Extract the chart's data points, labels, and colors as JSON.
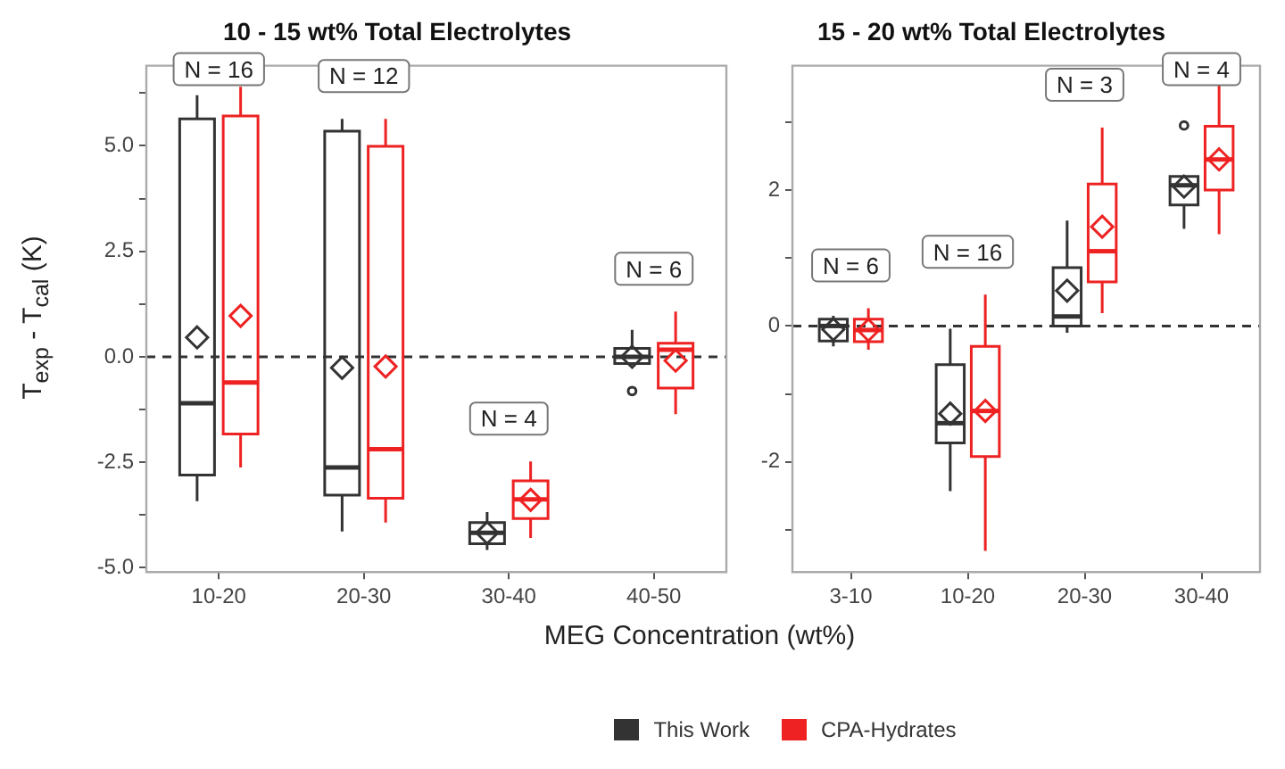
{
  "chart_data": [
    {
      "type": "box",
      "title": "10 - 15 wt% Total Electrolytes",
      "xlabel": "MEG Concentration (wt%)",
      "ylabel": "T$_{exp}$ - T$_{cal}$ (K)",
      "categories": [
        "10-20",
        "20-30",
        "30-40",
        "40-50"
      ],
      "series": [
        {
          "name": "This Work",
          "color": "#333333",
          "boxes": [
            {
              "low": -3.42,
              "q1": -2.8,
              "median": -1.1,
              "q3": 5.64,
              "high": 6.2,
              "mean": 0.46
            },
            {
              "low": -4.14,
              "q1": -3.28,
              "median": -2.62,
              "q3": 5.35,
              "high": 5.64,
              "mean": -0.26
            },
            {
              "low": -4.58,
              "q1": -4.43,
              "median": -4.17,
              "q3": -3.93,
              "high": -3.68,
              "mean": -4.17
            },
            {
              "low": -0.2,
              "q1": -0.16,
              "median": 0,
              "q3": 0.2,
              "high": 0.64,
              "mean": 0,
              "outliers": [
                -0.81
              ]
            }
          ]
        },
        {
          "name": "CPA-Hydrates",
          "color": "#ee2222",
          "boxes": [
            {
              "low": -2.62,
              "q1": -1.83,
              "median": -0.61,
              "q3": 5.71,
              "high": 6.4,
              "mean": 0.97
            },
            {
              "low": -3.93,
              "q1": -3.35,
              "median": -2.19,
              "q3": 4.99,
              "high": 5.64,
              "mean": -0.23
            },
            {
              "low": -4.29,
              "q1": -3.83,
              "median": -3.38,
              "q3": -2.94,
              "high": -2.48,
              "mean": -3.39
            },
            {
              "low": -1.36,
              "q1": -0.74,
              "median": 0.17,
              "q3": 0.32,
              "high": 1.07,
              "mean": -0.09
            }
          ]
        }
      ],
      "ylim": [
        -5.1,
        6.9
      ],
      "yticks": [
        {
          "value": -5,
          "label": "-5.0"
        },
        {
          "value": -3.75,
          "label": null
        },
        {
          "value": -2.5,
          "label": "-2.5"
        },
        {
          "value": -1.25,
          "label": null
        },
        {
          "value": 0,
          "label": "0.0"
        },
        {
          "value": 1.25,
          "label": null
        },
        {
          "value": 2.5,
          "label": "2.5"
        },
        {
          "value": 3.75,
          "label": null
        },
        {
          "value": 5,
          "label": "5.0"
        },
        {
          "value": 6.25,
          "label": null
        }
      ],
      "ref_lines": [
        {
          "axis": "y",
          "value": 0,
          "line_style": "dashed"
        }
      ],
      "annotations": [
        "N = 16",
        "N = 12",
        "N = 4",
        "N = 6"
      ],
      "legend": "bottom",
      "grid": false,
      "marker": "diamond"
    },
    {
      "type": "box",
      "title": "15 - 20 wt% Total Electrolytes",
      "categories": [
        "3-10",
        "10-20",
        "20-30",
        "30-40"
      ],
      "series": [
        {
          "color": "#333333",
          "boxes": [
            {
              "low": -0.3,
              "q1": -0.22,
              "median": 0,
              "q3": 0.1,
              "high": 0.15,
              "mean": -0.05
            },
            {
              "low": -2.43,
              "q1": -1.72,
              "median": -1.43,
              "q3": -0.57,
              "high": -0.04,
              "mean": -1.29
            },
            {
              "low": -0.1,
              "q1": 0,
              "median": 0.14,
              "q3": 0.86,
              "high": 1.55,
              "mean": 0.52
            },
            {
              "low": 1.43,
              "q1": 1.78,
              "median": 2.07,
              "q3": 2.2,
              "high": 2.2,
              "mean": 2.05,
              "outliers": [
                2.95
              ]
            }
          ]
        },
        {
          "color": "#ee2222",
          "boxes": [
            {
              "low": -0.35,
              "q1": -0.23,
              "median": -0.06,
              "q3": 0.1,
              "high": 0.26,
              "mean": -0.06
            },
            {
              "low": -3.31,
              "q1": -1.92,
              "median": -1.25,
              "q3": -0.3,
              "high": 0.46,
              "mean": -1.25
            },
            {
              "low": 0.19,
              "q1": 0.65,
              "median": 1.1,
              "q3": 2.09,
              "high": 2.92,
              "mean": 1.46
            },
            {
              "low": 1.35,
              "q1": 2,
              "median": 2.45,
              "q3": 2.94,
              "high": 3.6,
              "mean": 2.45
            }
          ]
        }
      ],
      "ylim": [
        -3.62,
        3.83
      ],
      "yticks": [
        {
          "value": -3,
          "label": null
        },
        -2,
        {
          "value": -1,
          "label": null
        },
        0,
        {
          "value": 1,
          "label": null
        },
        2,
        {
          "value": 3,
          "label": null
        }
      ],
      "ref_lines": [
        {
          "axis": "y",
          "value": 0,
          "line_style": "dashed"
        }
      ],
      "annotations": [
        "N = 6",
        "N = 16",
        "N = 3",
        "N = 4"
      ],
      "legend": false,
      "grid": false,
      "marker": "diamond"
    }
  ]
}
